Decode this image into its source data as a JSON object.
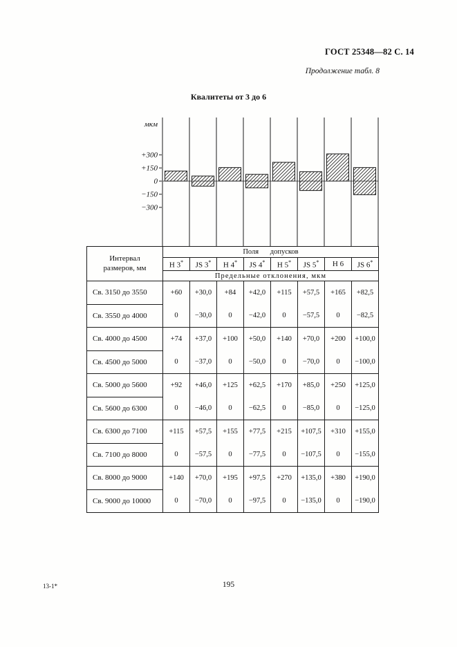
{
  "page": {
    "doc_header": "ГОСТ 25348—82 С. 14",
    "continuation": "Продолжение табл. 8",
    "title": "Квалитеты от 3 до 6",
    "footer_note": "13-1*",
    "page_number": "195"
  },
  "chart_data": {
    "type": "bar",
    "subtype": "tolerance-zone-diagram",
    "unit_label": "мкм",
    "ylim": [
      -380,
      420
    ],
    "grid": false,
    "y_ticks": [
      {
        "label": "+300",
        "value": 300
      },
      {
        "label": "+150",
        "value": 150
      },
      {
        "label": "0",
        "value": 0
      },
      {
        "label": "−150",
        "value": -150
      },
      {
        "label": "−300",
        "value": -300
      }
    ],
    "categories": [
      "Н 3*",
      "JS 3*",
      "Н 4*",
      "JS 4*",
      "Н 5*",
      "JS 5*",
      "Н 6",
      "JS 6*"
    ],
    "zones": [
      {
        "upper": 115,
        "lower": 0
      },
      {
        "upper": 57.5,
        "lower": -57.5
      },
      {
        "upper": 155,
        "lower": 0
      },
      {
        "upper": 77.5,
        "lower": -77.5
      },
      {
        "upper": 215,
        "lower": 0
      },
      {
        "upper": 107.5,
        "lower": -107.5
      },
      {
        "upper": 310,
        "lower": 0
      },
      {
        "upper": 155,
        "lower": -155
      }
    ]
  },
  "table": {
    "interval_header": "Интервал размеров, мм",
    "fields_header": "Поля допусков",
    "deviations_header": "Предельные отклонения, мкм",
    "columns": [
      "Н 3*",
      "JS 3*",
      "Н 4*",
      "JS 4*",
      "Н 5*",
      "JS 5*",
      "Н 6",
      "JS 6*"
    ],
    "groups": [
      {
        "rows": [
          "Св. 3150 до 3550",
          "Св. 3550 до 4000"
        ],
        "values": [
          [
            "+60",
            "0"
          ],
          [
            "+30,0",
            "−30,0"
          ],
          [
            "+84",
            "0"
          ],
          [
            "+42,0",
            "−42,0"
          ],
          [
            "+115",
            "0"
          ],
          [
            "+57,5",
            "−57,5"
          ],
          [
            "+165",
            "0"
          ],
          [
            "+82,5",
            "−82,5"
          ]
        ]
      },
      {
        "rows": [
          "Св. 4000 до 4500",
          "Св. 4500 до 5000"
        ],
        "values": [
          [
            "+74",
            "0"
          ],
          [
            "+37,0",
            "−37,0"
          ],
          [
            "+100",
            "0"
          ],
          [
            "+50,0",
            "−50,0"
          ],
          [
            "+140",
            "0"
          ],
          [
            "+70,0",
            "−70,0"
          ],
          [
            "+200",
            "0"
          ],
          [
            "+100,0",
            "−100,0"
          ]
        ]
      },
      {
        "rows": [
          "Св. 5000 до 5600",
          "Св. 5600 до 6300"
        ],
        "values": [
          [
            "+92",
            "0"
          ],
          [
            "+46,0",
            "−46,0"
          ],
          [
            "+125",
            "0"
          ],
          [
            "+62,5",
            "−62,5"
          ],
          [
            "+170",
            "0"
          ],
          [
            "+85,0",
            "−85,0"
          ],
          [
            "+250",
            "0"
          ],
          [
            "+125,0",
            "−125,0"
          ]
        ]
      },
      {
        "rows": [
          "Св. 6300 до 7100",
          "Св. 7100 до 8000"
        ],
        "values": [
          [
            "+115",
            "0"
          ],
          [
            "+57,5",
            "−57,5"
          ],
          [
            "+155",
            "0"
          ],
          [
            "+77,5",
            "−77,5"
          ],
          [
            "+215",
            "0"
          ],
          [
            "+107,5",
            "−107,5"
          ],
          [
            "+310",
            "0"
          ],
          [
            "+155,0",
            "−155,0"
          ]
        ]
      },
      {
        "rows": [
          "Св. 8000 до 9000",
          "Св. 9000 до 10000"
        ],
        "values": [
          [
            "+140",
            "0"
          ],
          [
            "+70,0",
            "−70,0"
          ],
          [
            "+195",
            "0"
          ],
          [
            "+97,5",
            "−97,5"
          ],
          [
            "+270",
            "0"
          ],
          [
            "+135,0",
            "−135,0"
          ],
          [
            "+380",
            "0"
          ],
          [
            "+190,0",
            "−190,0"
          ]
        ]
      }
    ]
  }
}
